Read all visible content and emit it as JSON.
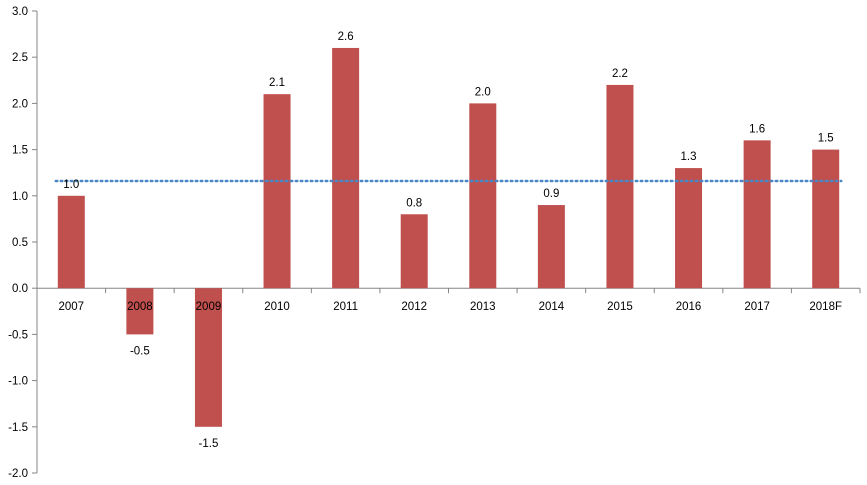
{
  "chart_data": {
    "type": "bar",
    "title": "",
    "xlabel": "",
    "ylabel": "",
    "categories": [
      "2007",
      "2008",
      "2009",
      "2010",
      "2011",
      "2012",
      "2013",
      "2014",
      "2015",
      "2016",
      "2017",
      "2018F"
    ],
    "values": [
      1.0,
      -0.5,
      -1.5,
      2.1,
      2.6,
      0.8,
      2.0,
      0.9,
      2.2,
      1.3,
      1.6,
      1.5
    ],
    "data_labels": [
      "1.0",
      "-0.5",
      "-1.5",
      "2.1",
      "2.6",
      "0.8",
      "2.0",
      "0.9",
      "2.2",
      "1.3",
      "1.6",
      "1.5"
    ],
    "ylim": [
      -2.0,
      3.0
    ],
    "yticks": [
      3.0,
      2.5,
      2.0,
      1.5,
      1.0,
      0.5,
      0.0,
      -0.5,
      -1.0,
      -1.5,
      -2.0
    ],
    "ytick_labels": [
      "3.0",
      "2.5",
      "2.0",
      "1.5",
      "1.0",
      "0.5",
      "0.0",
      "-0.5",
      "-1.0",
      "-1.5",
      "-2.0"
    ],
    "reference_line": {
      "value": 1.16,
      "style": "dotted"
    },
    "grid": false,
    "legend": "none",
    "colors": {
      "bar": "#c0504d",
      "reference_line": "#4a86c5",
      "axis": "#868686"
    }
  }
}
